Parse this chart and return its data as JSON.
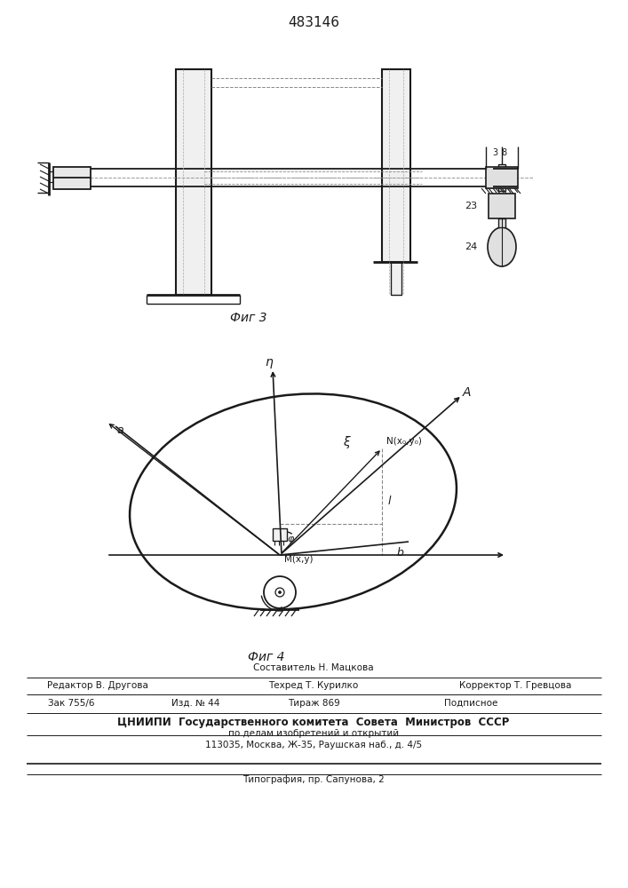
{
  "title": "483146",
  "bg_color": "#ffffff",
  "line_color": "#1a1a1a",
  "fig3_caption": "Фиг 3",
  "fig4_caption": "Фиг 4",
  "footer": {
    "line1": "Составитель Н. Мацкова",
    "line2_left": "Редактор В. Другова",
    "line2_mid": "Техред Т. Курилко",
    "line2_right": "Корректор Т. Гревцова",
    "line3_1": "Зак 755/6",
    "line3_2": "Изд. № 44",
    "line3_3": "Тираж 869",
    "line3_4": "Подписное",
    "line4": "ЦНИИПИ  Государственного комитета  Совета  Министров  СССР",
    "line5": "по делам изобретений и открытий",
    "line6": "113035, Москва, Ж-35, Раушская наб., д. 4/5",
    "line7": "Типография, пр. Сапунова, 2"
  }
}
